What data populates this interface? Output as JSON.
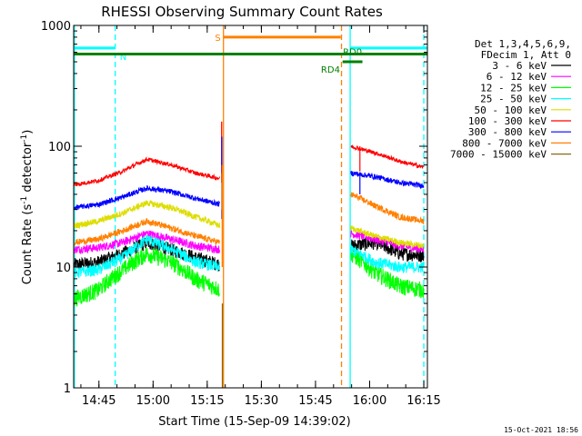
{
  "chart_data": {
    "type": "line",
    "title": "RHESSI Observing Summary Count Rates",
    "xlabel": "Start Time (15-Sep-09 14:39:02)",
    "ylabel_prefix": "Count Rate (s",
    "ylabel_sup": "-1",
    "ylabel_mid": " detector",
    "ylabel_suffix": ")",
    "scale_y": "log",
    "ylim": [
      1,
      1000
    ],
    "xlim_minutes": [
      -1,
      97
    ],
    "x_tick_labels": [
      {
        "t": 6,
        "label": "14:45"
      },
      {
        "t": 21,
        "label": "15:00"
      },
      {
        "t": 36,
        "label": "15:15"
      },
      {
        "t": 51,
        "label": "15:30"
      },
      {
        "t": 66,
        "label": "15:45"
      },
      {
        "t": 81,
        "label": "16:00"
      },
      {
        "t": 96,
        "label": "16:15"
      }
    ],
    "y_tick_labels": [
      {
        "v": 1,
        "label": "1"
      },
      {
        "v": 10,
        "label": "10"
      },
      {
        "v": 100,
        "label": "100"
      },
      {
        "v": 1000,
        "label": "1000"
      }
    ],
    "legend_header": [
      "Det 1,3,4,5,6,9,",
      "FDecim 1, Att 0"
    ],
    "legend_position": "top-right",
    "series": [
      {
        "name": "3 - 6 keV",
        "color": "#000000",
        "shape": [
          10.5,
          11,
          13,
          16,
          14,
          12,
          10.5
        ],
        "after": [
          15,
          16,
          13,
          12.5
        ]
      },
      {
        "name": "6 - 12 keV",
        "color": "#ff00ff",
        "shape": [
          14,
          14.5,
          16,
          19,
          17,
          15,
          14
        ],
        "after": [
          19,
          17,
          15,
          14
        ]
      },
      {
        "name": "12 - 25 keV",
        "color": "#00ff00",
        "shape": [
          5.5,
          6.5,
          9.5,
          13,
          11,
          8,
          6.5
        ],
        "after": [
          13,
          9,
          7,
          6.5
        ]
      },
      {
        "name": "25 - 50 keV",
        "color": "#00ffff",
        "shape": [
          9,
          9.5,
          12,
          17,
          14,
          11,
          10
        ],
        "after": [
          14,
          11,
          10,
          10
        ]
      },
      {
        "name": "50 - 100 keV",
        "color": "#dddd00",
        "shape": [
          22,
          24,
          28,
          34,
          31,
          26,
          22
        ],
        "after": [
          21,
          18,
          16,
          15
        ]
      },
      {
        "name": "100 - 300 keV",
        "color": "#ff0000",
        "shape": [
          48,
          52,
          62,
          78,
          70,
          60,
          54
        ],
        "after": [
          100,
          88,
          75,
          67
        ]
      },
      {
        "name": "300 - 800 keV",
        "color": "#0000ff",
        "shape": [
          31,
          33,
          38,
          45,
          42,
          37,
          33
        ],
        "after": [
          60,
          56,
          50,
          47
        ]
      },
      {
        "name": "800 - 7000 keV",
        "color": "#ff8000",
        "shape": [
          16,
          17,
          20,
          24,
          21,
          18,
          16
        ],
        "after": [
          40,
          32,
          26,
          24
        ]
      },
      {
        "name": "7000 - 15000 keV",
        "color": "#8b6914",
        "shape": [],
        "after": []
      }
    ],
    "markers": [
      {
        "label": "N",
        "color": "#00ffff",
        "level": 650,
        "x0": -1,
        "x1": 10.5
      },
      {
        "label": "S",
        "color": "#ff8000",
        "level": 800,
        "x0": 40.5,
        "x1": 73
      },
      {
        "label": "N",
        "color": "#00ffff",
        "level": 650,
        "x0": 75.5,
        "x1": 97
      },
      {
        "label": "RD4",
        "color": "#008000",
        "level": 500,
        "x0": 73.5,
        "x1": 79
      },
      {
        "label": "RD0",
        "color": "#008000",
        "level": 580,
        "x0": -1,
        "x1": 97
      }
    ],
    "vlines": [
      {
        "t": -0.8,
        "color": "#00ffff",
        "style": "solid"
      },
      {
        "t": 10.5,
        "color": "#00ffff",
        "style": "dashed"
      },
      {
        "t": 40.5,
        "color": "#ff8000",
        "style": "solid"
      },
      {
        "t": 73.2,
        "color": "#ff8000",
        "style": "dashed"
      },
      {
        "t": 75.6,
        "color": "#00ffff",
        "style": "solid"
      },
      {
        "t": 96.0,
        "color": "#00ffff",
        "style": "dashed"
      }
    ]
  },
  "footer": {
    "timestamp": "15-Oct-2021 18:56"
  }
}
